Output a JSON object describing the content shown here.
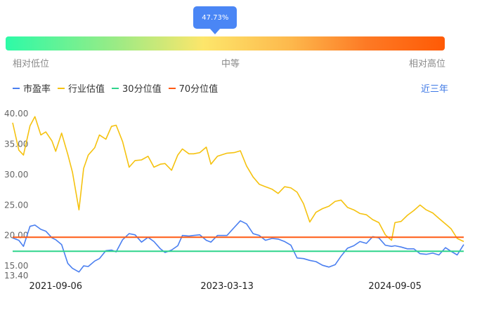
{
  "percentile": {
    "label": "47.73%",
    "value": 0.4773,
    "low_label": "相对低位",
    "mid_label": "中等",
    "high_label": "相对高位"
  },
  "range_label": "近三年",
  "colors": {
    "pe": "#4a7ff0",
    "industry": "#f5c20f",
    "p30": "#2fd48c",
    "p70": "#ff5a13",
    "accent": "#4a86f5"
  },
  "chart_data": {
    "type": "line",
    "ylim": [
      13.4,
      40.0
    ],
    "y_ticks": [
      "40.00",
      "35.00",
      "30.00",
      "25.00",
      "20.00",
      "15.00",
      "13.40"
    ],
    "x_ticks": [
      "2021-09-06",
      "2023-03-13",
      "2024-09-05"
    ],
    "series": [
      {
        "name": "市盈率",
        "x": [
          "2021-04-20",
          "2021-05-10",
          "2021-05-25",
          "2021-06-15",
          "2021-07-01",
          "2021-07-20",
          "2021-08-05",
          "2021-08-25",
          "2021-09-06",
          "2021-09-25",
          "2021-10-15",
          "2021-10-30",
          "2021-11-20",
          "2021-12-05",
          "2021-12-20",
          "2022-01-10",
          "2022-01-25",
          "2022-02-15",
          "2022-03-05",
          "2022-03-20",
          "2022-04-10",
          "2022-05-01",
          "2022-05-20",
          "2022-06-10",
          "2022-07-01",
          "2022-07-20",
          "2022-08-10",
          "2022-08-25",
          "2022-09-15",
          "2022-10-05",
          "2022-10-20",
          "2022-11-10",
          "2022-11-25",
          "2022-12-15",
          "2023-01-05",
          "2023-01-20",
          "2023-02-10",
          "2023-03-13",
          "2023-04-05",
          "2023-04-25",
          "2023-05-15",
          "2023-06-05",
          "2023-06-25",
          "2023-07-15",
          "2023-08-05",
          "2023-08-25",
          "2023-09-15",
          "2023-10-05",
          "2023-10-25",
          "2023-11-15",
          "2023-12-05",
          "2023-12-25",
          "2024-01-15",
          "2024-02-05",
          "2024-02-25",
          "2024-03-15",
          "2024-04-05",
          "2024-04-25",
          "2024-05-15",
          "2024-06-05",
          "2024-06-25",
          "2024-07-15",
          "2024-08-05",
          "2024-08-25",
          "2024-09-05",
          "2024-09-25",
          "2024-10-15",
          "2024-11-05",
          "2024-11-25",
          "2024-12-15",
          "2025-01-05",
          "2025-01-25",
          "2025-02-15",
          "2025-03-05",
          "2025-03-25",
          "2025-04-15"
        ],
        "values": [
          19.6,
          19.2,
          18.2,
          21.5,
          21.7,
          21.0,
          20.7,
          19.6,
          19.3,
          18.5,
          15.4,
          14.6,
          14.0,
          15.0,
          14.9,
          15.8,
          16.2,
          17.5,
          17.6,
          17.3,
          19.3,
          20.3,
          20.1,
          18.9,
          19.7,
          19.0,
          17.8,
          17.2,
          17.6,
          18.3,
          20.0,
          19.9,
          20.0,
          20.1,
          19.2,
          18.9,
          20.0,
          20.0,
          21.3,
          22.4,
          21.9,
          20.3,
          20.0,
          19.2,
          19.5,
          19.4,
          19.0,
          18.4,
          16.3,
          16.2,
          15.9,
          15.7,
          15.1,
          14.8,
          15.2,
          16.6,
          17.9,
          18.3,
          19.0,
          18.7,
          19.8,
          19.6,
          18.4,
          18.2,
          18.3,
          18.1,
          17.8,
          17.8,
          17.0,
          16.9,
          17.1,
          16.8,
          18.0,
          17.4,
          16.8,
          18.5
        ]
      },
      {
        "name": "行业估值",
        "x": [
          "2021-04-20",
          "2021-05-10",
          "2021-05-25",
          "2021-06-15",
          "2021-07-01",
          "2021-07-20",
          "2021-08-05",
          "2021-08-25",
          "2021-09-06",
          "2021-09-25",
          "2021-10-15",
          "2021-10-30",
          "2021-11-20",
          "2021-12-05",
          "2021-12-20",
          "2022-01-10",
          "2022-01-25",
          "2022-02-15",
          "2022-03-05",
          "2022-03-20",
          "2022-04-10",
          "2022-05-01",
          "2022-05-20",
          "2022-06-10",
          "2022-07-01",
          "2022-07-20",
          "2022-08-10",
          "2022-08-25",
          "2022-09-15",
          "2022-10-05",
          "2022-10-20",
          "2022-11-10",
          "2022-11-25",
          "2022-12-15",
          "2023-01-05",
          "2023-01-20",
          "2023-02-10",
          "2023-03-13",
          "2023-04-05",
          "2023-04-25",
          "2023-05-15",
          "2023-06-05",
          "2023-06-25",
          "2023-07-15",
          "2023-08-05",
          "2023-08-25",
          "2023-09-15",
          "2023-10-05",
          "2023-10-25",
          "2023-11-15",
          "2023-12-05",
          "2023-12-25",
          "2024-01-15",
          "2024-02-05",
          "2024-02-25",
          "2024-03-15",
          "2024-04-05",
          "2024-04-25",
          "2024-05-15",
          "2024-06-05",
          "2024-06-25",
          "2024-07-15",
          "2024-08-05",
          "2024-08-25",
          "2024-09-05",
          "2024-09-25",
          "2024-10-15",
          "2024-11-05",
          "2024-11-25",
          "2024-12-15",
          "2025-01-05",
          "2025-01-25",
          "2025-02-15",
          "2025-03-05",
          "2025-03-25",
          "2025-04-15"
        ],
        "values": [
          38.5,
          34.0,
          33.2,
          38.0,
          39.5,
          36.5,
          37.0,
          35.5,
          33.8,
          36.8,
          33.3,
          30.4,
          24.2,
          31.0,
          33.2,
          34.4,
          36.5,
          35.8,
          37.9,
          38.1,
          35.4,
          31.2,
          32.3,
          32.4,
          33.0,
          31.2,
          31.7,
          31.8,
          30.7,
          33.2,
          34.2,
          33.4,
          33.4,
          33.6,
          34.5,
          31.7,
          33.0,
          33.5,
          33.6,
          33.9,
          31.4,
          29.6,
          28.4,
          28.0,
          27.6,
          26.9,
          28.0,
          27.8,
          27.1,
          25.2,
          22.2,
          23.8,
          24.4,
          24.8,
          25.6,
          25.8,
          24.6,
          24.2,
          23.6,
          23.4,
          22.6,
          22.1,
          20.1,
          19.2,
          22.1,
          22.3,
          23.3,
          24.1,
          25.0,
          24.2,
          23.7,
          22.8,
          21.9,
          21.1,
          19.5,
          19.0
        ]
      },
      {
        "name": "30分位值",
        "x": [
          "2021-04-20",
          "2025-04-15"
        ],
        "values": [
          17.4,
          17.4
        ]
      },
      {
        "name": "70分位值",
        "x": [
          "2021-04-20",
          "2025-04-15"
        ],
        "values": [
          19.7,
          19.7
        ]
      }
    ]
  }
}
